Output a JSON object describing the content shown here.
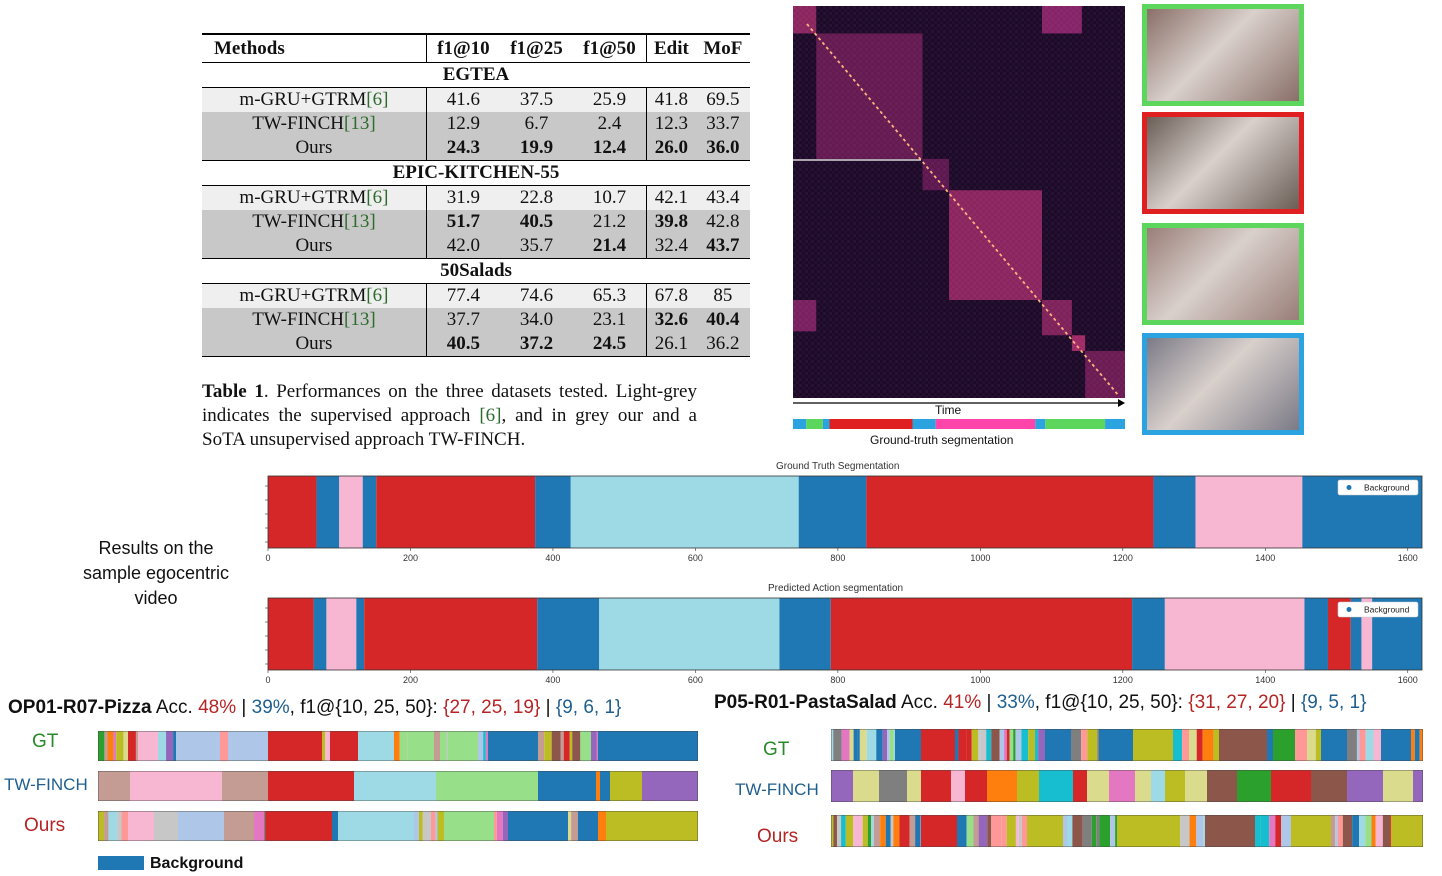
{
  "table": {
    "headers": [
      "Methods",
      "f1@10",
      "f1@25",
      "f1@50",
      "Edit",
      "MoF"
    ],
    "sections": [
      {
        "name": "EGTEA",
        "rows": [
          {
            "method": "m-GRU+GTRM",
            "ref": "[6]",
            "shade": "light",
            "values": [
              "41.6",
              "37.5",
              "25.9",
              "41.8",
              "69.5"
            ],
            "bold": [
              false,
              false,
              false,
              false,
              false
            ]
          },
          {
            "method": "TW-FINCH",
            "ref": "[13]",
            "shade": "grey",
            "values": [
              "12.9",
              "6.7",
              "2.4",
              "12.3",
              "33.7"
            ],
            "bold": [
              false,
              false,
              false,
              false,
              false
            ]
          },
          {
            "method": "Ours",
            "ref": "",
            "shade": "grey",
            "values": [
              "24.3",
              "19.9",
              "12.4",
              "26.0",
              "36.0"
            ],
            "bold": [
              true,
              true,
              true,
              true,
              true
            ]
          }
        ]
      },
      {
        "name": "EPIC-KITCHEN-55",
        "rows": [
          {
            "method": "m-GRU+GTRM",
            "ref": "[6]",
            "shade": "light",
            "values": [
              "31.9",
              "22.8",
              "10.7",
              "42.1",
              "43.4"
            ],
            "bold": [
              false,
              false,
              false,
              false,
              false
            ]
          },
          {
            "method": "TW-FINCH",
            "ref": "[13]",
            "shade": "grey",
            "values": [
              "51.7",
              "40.5",
              "21.2",
              "39.8",
              "42.8"
            ],
            "bold": [
              true,
              true,
              false,
              true,
              false
            ]
          },
          {
            "method": "Ours",
            "ref": "",
            "shade": "grey",
            "values": [
              "42.0",
              "35.7",
              "21.4",
              "32.4",
              "43.7"
            ],
            "bold": [
              false,
              false,
              true,
              false,
              true
            ]
          }
        ]
      },
      {
        "name": "50Salads",
        "rows": [
          {
            "method": "m-GRU+GTRM",
            "ref": "[6]",
            "shade": "light",
            "values": [
              "77.4",
              "74.6",
              "65.3",
              "67.8",
              "85"
            ],
            "bold": [
              false,
              false,
              false,
              false,
              false
            ]
          },
          {
            "method": "TW-FINCH",
            "ref": "[13]",
            "shade": "grey",
            "values": [
              "37.7",
              "34.0",
              "23.1",
              "32.6",
              "40.4"
            ],
            "bold": [
              false,
              false,
              false,
              true,
              true
            ]
          },
          {
            "method": "Ours",
            "ref": "",
            "shade": "grey",
            "values": [
              "40.5",
              "37.2",
              "24.5",
              "26.1",
              "36.2"
            ],
            "bold": [
              true,
              true,
              true,
              false,
              false
            ]
          }
        ]
      }
    ]
  },
  "caption": {
    "label": "Table 1",
    "text_a": ". Performances on the three datasets tested. Light-grey indicates the supervised approach ",
    "ref": "[6]",
    "text_b": ", and in grey our and a SoTA unsupervised approach TW-FINCH."
  },
  "heatmap": {
    "time_label": "Time",
    "gt_label": "Ground-truth segmentation",
    "gt_bar": [
      {
        "value": 0.04,
        "color": "#2aa3e0"
      },
      {
        "value": 0.05,
        "color": "#5cd65c"
      },
      {
        "value": 0.02,
        "color": "#2aa3e0"
      },
      {
        "value": 0.25,
        "color": "#e02020"
      },
      {
        "value": 0.07,
        "color": "#2aa3e0"
      },
      {
        "value": 0.3,
        "color": "#ff44aa"
      },
      {
        "value": 0.03,
        "color": "#2aa3e0"
      },
      {
        "value": 0.18,
        "color": "#5cd65c"
      },
      {
        "value": 0.06,
        "color": "#2aa3e0"
      }
    ],
    "blocks": [
      {
        "start": 0.0,
        "end": 0.07,
        "intensity": 0.55
      },
      {
        "start": 0.07,
        "end": 0.39,
        "intensity": 0.25
      },
      {
        "start": 0.39,
        "end": 0.47,
        "intensity": 0.2
      },
      {
        "start": 0.47,
        "end": 0.75,
        "intensity": 0.55
      },
      {
        "start": 0.75,
        "end": 0.84,
        "intensity": 0.45
      },
      {
        "start": 0.84,
        "end": 0.88,
        "intensity": 0.7
      },
      {
        "start": 0.88,
        "end": 1.0,
        "intensity": 0.3
      }
    ]
  },
  "thumbnails": [
    {
      "name": "binder-on-table",
      "border": "#5cd65c",
      "bg": "#8a6f68"
    },
    {
      "name": "kitchen-counter",
      "border": "#e02020",
      "bg": "#6a5e56"
    },
    {
      "name": "reading-binder",
      "border": "#5cd65c",
      "bg": "#9a7e78"
    },
    {
      "name": "blurred-motion",
      "border": "#2aa3e0",
      "bg": "#7b7a86"
    }
  ],
  "plots": {
    "gt_title": "Ground Truth Segmentation",
    "pred_title": "Predicted Action segmentation",
    "legend": "Background",
    "xmax": 1620,
    "ticks": [
      "0",
      "200",
      "400",
      "600",
      "800",
      "1000",
      "1200",
      "1400",
      "1600"
    ],
    "tick_values": [
      0,
      200,
      400,
      600,
      800,
      1000,
      1200,
      1400,
      1600
    ],
    "gt_segments": [
      [
        0,
        68,
        "#d62728"
      ],
      [
        68,
        100,
        "#1f77b4"
      ],
      [
        100,
        133,
        "#f7b6d2"
      ],
      [
        133,
        152,
        "#1f77b4"
      ],
      [
        152,
        375,
        "#d62728"
      ],
      [
        375,
        425,
        "#1f77b4"
      ],
      [
        425,
        745,
        "#9edae5"
      ],
      [
        745,
        840,
        "#1f77b4"
      ],
      [
        840,
        1243,
        "#d62728"
      ],
      [
        1243,
        1302,
        "#1f77b4"
      ],
      [
        1302,
        1452,
        "#f7b6d2"
      ],
      [
        1452,
        1620,
        "#1f77b4"
      ]
    ],
    "pred_segments": [
      [
        0,
        64,
        "#d62728"
      ],
      [
        64,
        82,
        "#1f77b4"
      ],
      [
        82,
        124,
        "#f7b6d2"
      ],
      [
        124,
        135,
        "#1f77b4"
      ],
      [
        135,
        378,
        "#d62728"
      ],
      [
        378,
        465,
        "#1f77b4"
      ],
      [
        465,
        718,
        "#9edae5"
      ],
      [
        718,
        790,
        "#1f77b4"
      ],
      [
        790,
        1213,
        "#d62728"
      ],
      [
        1213,
        1259,
        "#1f77b4"
      ],
      [
        1259,
        1455,
        "#f7b6d2"
      ],
      [
        1455,
        1488,
        "#1f77b4"
      ],
      [
        1488,
        1520,
        "#d62728"
      ],
      [
        1520,
        1535,
        "#1f77b4"
      ],
      [
        1535,
        1550,
        "#f7b6d2"
      ],
      [
        1550,
        1620,
        "#1f77b4"
      ]
    ]
  },
  "results_text": "Results on the sample egocentric video",
  "panel_left": {
    "name": "OP01-R07-Pizza",
    "acc_label": " Acc. ",
    "acc_red": "48%",
    "bar1": " | ",
    "acc_blue": "39%",
    "f1_label": ", f1@{10, 25, 50}: ",
    "f1_red": "{27, 25, 19}",
    "bar2": " |  ",
    "f1_blue": "{9, 6, 1}",
    "rows": [
      "GT",
      "TW-FINCH",
      "Ours"
    ],
    "legend": "Background"
  },
  "panel_right": {
    "name": "P05-R01-PastaSalad",
    "acc_label": " Acc. ",
    "acc_red": "41%",
    "bar1": " | ",
    "acc_blue": "33%",
    "f1_label": ", f1@{10, 25, 50}: ",
    "f1_red": "{31, 27, 20}",
    "bar2": " |  ",
    "f1_blue": "{9, 5, 1}",
    "rows": [
      "GT",
      "TW-FINCH",
      "Ours"
    ]
  },
  "colors": {
    "gt_green": "#2a8a2a",
    "tw_blue": "#1f5f8f",
    "ours_red": "#b52525"
  }
}
